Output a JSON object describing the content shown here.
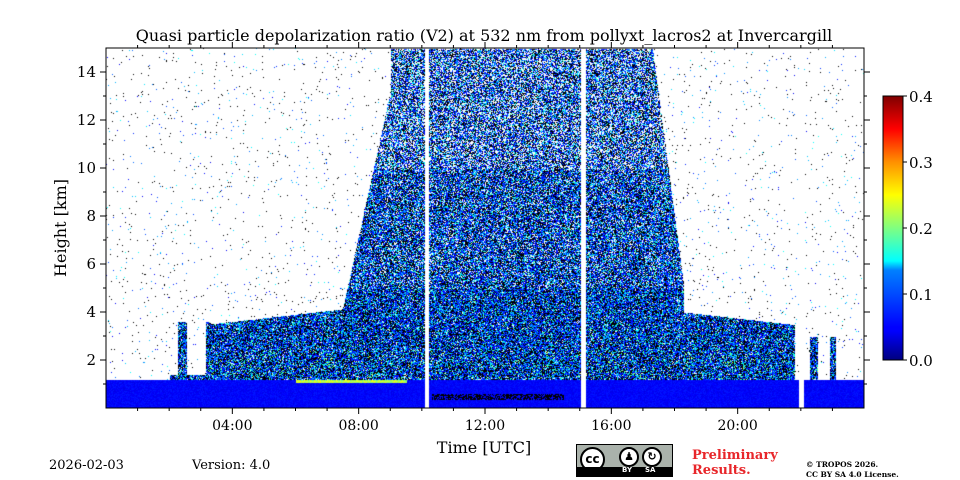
{
  "chart_data": {
    "type": "heatmap",
    "title": "Quasi particle depolarization ratio (V2) at 532 nm from pollyxt_lacros2 at Invercargill",
    "xlabel": "Time [UTC]",
    "ylabel": "Height [km]",
    "xlim_hours": [
      0,
      24
    ],
    "ylim_km": [
      0,
      15
    ],
    "x_ticks": [
      {
        "value": 4,
        "label": "04:00"
      },
      {
        "value": 8,
        "label": "08:00"
      },
      {
        "value": 12,
        "label": "12:00"
      },
      {
        "value": 16,
        "label": "16:00"
      },
      {
        "value": 20,
        "label": "20:00"
      }
    ],
    "y_ticks": [
      {
        "value": 2,
        "label": "2"
      },
      {
        "value": 4,
        "label": "4"
      },
      {
        "value": 6,
        "label": "6"
      },
      {
        "value": 8,
        "label": "8"
      },
      {
        "value": 10,
        "label": "10"
      },
      {
        "value": 12,
        "label": "12"
      },
      {
        "value": 14,
        "label": "14"
      }
    ],
    "colorbar": {
      "range": [
        0.0,
        0.4
      ],
      "ticks": [
        {
          "value": 0.0,
          "label": "0.0"
        },
        {
          "value": 0.1,
          "label": "0.1"
        },
        {
          "value": 0.2,
          "label": "0.2"
        },
        {
          "value": 0.3,
          "label": "0.3"
        },
        {
          "value": 0.4,
          "label": "0.4"
        }
      ],
      "colormap": "jet"
    },
    "data_gaps_hours": [
      10.15,
      15.1,
      22.0
    ],
    "colors": {
      "jet_dark_blue": "#00007f",
      "jet_blue": "#0000ff",
      "jet_cyan": "#00ffff",
      "jet_yellow": "#ffff00",
      "jet_red": "#ff0000",
      "jet_dark_red": "#7f0000"
    }
  },
  "footer": {
    "date": "2026-02-03",
    "version": "Version: 4.0",
    "preliminary_line1": "Preliminary",
    "preliminary_line2": "Results.",
    "license_line1": "© TROPOS 2026.",
    "license_line2": "CC BY SA 4.0 License.",
    "cc_badge": {
      "by_label": "BY",
      "sa_label": "SA",
      "cc_label": "cc"
    }
  }
}
